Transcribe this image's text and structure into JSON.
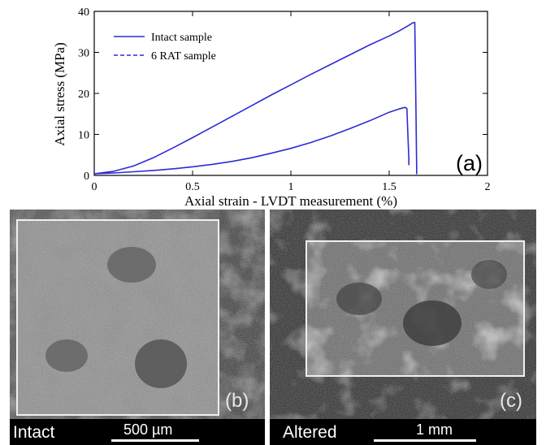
{
  "chart_data": {
    "type": "line",
    "panel_label": "(a)",
    "xlabel": "Axial strain - LVDT measurement (%)",
    "ylabel": "Axial stress (MPa)",
    "xlim": [
      0,
      2
    ],
    "ylim": [
      0,
      40
    ],
    "xticks": [
      0,
      0.5,
      1,
      1.5,
      2
    ],
    "xtick_labels": [
      "0",
      "0.5",
      "1",
      "1.5",
      "2"
    ],
    "yticks": [
      0,
      10,
      20,
      30,
      40
    ],
    "ytick_labels": [
      "0",
      "10",
      "20",
      "30",
      "40"
    ],
    "legend_position": "top-left",
    "grid": false,
    "series": [
      {
        "name": "Intact sample",
        "style": "solid",
        "color": "#2b2bd6",
        "x": [
          0,
          0.1,
          0.2,
          0.3,
          0.4,
          0.5,
          0.6,
          0.7,
          0.8,
          0.9,
          1.0,
          1.1,
          1.2,
          1.3,
          1.4,
          1.5,
          1.55,
          1.6,
          1.62,
          1.63,
          1.635,
          1.64
        ],
        "y": [
          0.4,
          1.0,
          2.3,
          4.3,
          6.7,
          9.2,
          11.8,
          14.4,
          17.0,
          19.6,
          22.1,
          24.6,
          27.0,
          29.4,
          31.8,
          34.0,
          35.2,
          36.6,
          37.2,
          37.3,
          20.0,
          0.3
        ]
      },
      {
        "name": "6 RAT sample",
        "style": "dashed",
        "color": "#2b2bd6",
        "x": [
          0,
          0.1,
          0.2,
          0.3,
          0.4,
          0.5,
          0.6,
          0.7,
          0.8,
          0.9,
          1.0,
          1.1,
          1.2,
          1.3,
          1.4,
          1.5,
          1.55,
          1.58,
          1.59,
          1.595,
          1.6,
          1.6
        ],
        "y": [
          0.4,
          0.6,
          0.9,
          1.2,
          1.6,
          2.1,
          2.7,
          3.4,
          4.3,
          5.4,
          6.6,
          8.0,
          9.6,
          11.4,
          13.3,
          15.4,
          16.2,
          16.6,
          16.3,
          10.0,
          4.0,
          2.5
        ]
      }
    ]
  },
  "panels": [
    {
      "letter": "(b)",
      "caption": "Intact",
      "scale_label": "500 µm"
    },
    {
      "letter": "(c)",
      "caption": "Altered",
      "scale_label": "1 mm"
    }
  ]
}
